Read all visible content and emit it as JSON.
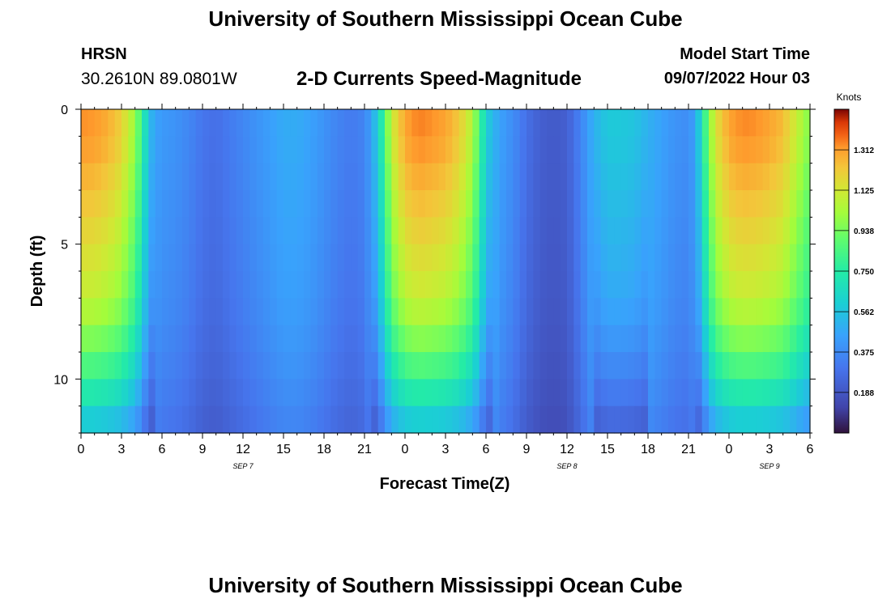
{
  "header": {
    "title": "University of Southern Mississippi Ocean Cube",
    "station": "HRSN",
    "coords": "30.2610N  89.0801W",
    "model_label": "Model Start Time",
    "model_time": "09/07/2022 Hour 03",
    "footer_title": "University of Southern Mississippi Ocean Cube"
  },
  "chart_data": {
    "type": "heatmap",
    "title": "2-D Currents Speed-Magnitude",
    "xlabel": "Forecast Time(Z)",
    "ylabel": "Depth (ft)",
    "colorbar_label": "Knots",
    "x_range_hours": [
      0,
      54
    ],
    "y_range_ft": [
      0,
      12
    ],
    "y_inverted": true,
    "x_tick_labels": [
      "0",
      "3",
      "6",
      "9",
      "12",
      "15",
      "18",
      "21",
      "0",
      "3",
      "6",
      "9",
      "12",
      "15",
      "18",
      "21",
      "0",
      "3",
      "6"
    ],
    "x_tick_hours": [
      0,
      3,
      6,
      9,
      12,
      15,
      18,
      21,
      24,
      27,
      30,
      33,
      36,
      39,
      42,
      45,
      48,
      51,
      54
    ],
    "y_ticks": [
      0,
      5,
      10
    ],
    "y_tick_labels": [
      "0",
      "5",
      "10"
    ],
    "date_labels": [
      {
        "text": "SEP 7",
        "hour": 12
      },
      {
        "text": "SEP 8",
        "hour": 36
      },
      {
        "text": "SEP 9",
        "hour": 51
      }
    ],
    "colorbar_ticks": [
      0.188,
      0.375,
      0.562,
      0.75,
      0.938,
      1.125,
      1.312
    ],
    "colorbar_tick_labels": [
      "0.188",
      "0.375",
      "0.562",
      "0.750",
      "0.938",
      "1.125",
      "1.312"
    ],
    "colorbar_range": [
      0,
      1.5
    ],
    "speed_profile_surface": {
      "hours": [
        0,
        1,
        2,
        3,
        4,
        4.5,
        5,
        5.5,
        6,
        7,
        8,
        9,
        10,
        11,
        12,
        13,
        14,
        15,
        16,
        17,
        18,
        19,
        20,
        21,
        21.5,
        22,
        22.5,
        23,
        24,
        25,
        26,
        27,
        28,
        29,
        29.5,
        30,
        31,
        32,
        33,
        34,
        35,
        36,
        37,
        38,
        39,
        40,
        41,
        42,
        43,
        44,
        45,
        45.5,
        46,
        46.5,
        47,
        48,
        49,
        50,
        51,
        52,
        53,
        54
      ],
      "knots": [
        1.33,
        1.32,
        1.28,
        1.2,
        1.0,
        0.8,
        0.55,
        0.45,
        0.42,
        0.4,
        0.36,
        0.3,
        0.28,
        0.32,
        0.36,
        0.4,
        0.44,
        0.48,
        0.48,
        0.45,
        0.4,
        0.35,
        0.32,
        0.35,
        0.45,
        0.6,
        0.85,
        1.1,
        1.3,
        1.35,
        1.33,
        1.3,
        1.22,
        1.05,
        0.85,
        0.6,
        0.45,
        0.38,
        0.28,
        0.22,
        0.2,
        0.22,
        0.35,
        0.5,
        0.58,
        0.58,
        0.56,
        0.5,
        0.45,
        0.4,
        0.38,
        0.45,
        0.7,
        0.95,
        1.15,
        1.3,
        1.34,
        1.33,
        1.3,
        1.25,
        1.1,
        0.95
      ]
    },
    "depth_scale": {
      "depth_ft": [
        0,
        1,
        2,
        3,
        4,
        5,
        6,
        7,
        8,
        9,
        10,
        11,
        12
      ],
      "factor": [
        1.0,
        1.0,
        0.97,
        0.94,
        0.91,
        0.88,
        0.85,
        0.82,
        0.76,
        0.68,
        0.6,
        0.5,
        0.4
      ]
    }
  }
}
